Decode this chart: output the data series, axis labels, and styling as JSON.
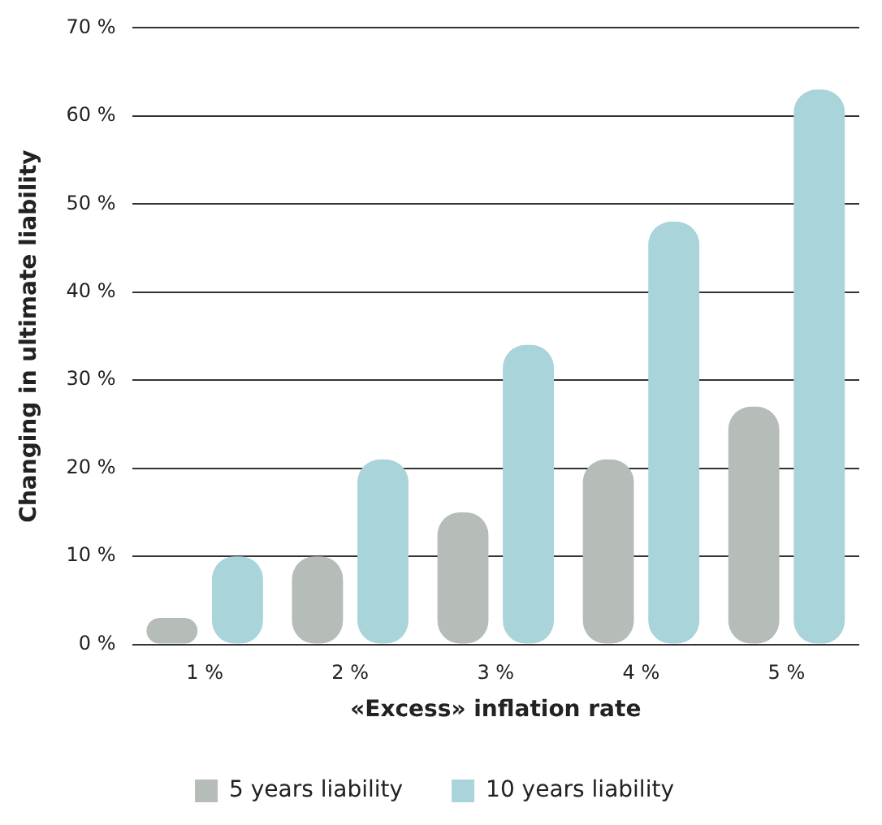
{
  "chart_data": {
    "type": "bar",
    "xlabel": "«Excess» inflation rate",
    "ylabel": "Changing in ultimate liability",
    "categories": [
      "1 %",
      "2 %",
      "3 %",
      "4 %",
      "5 %"
    ],
    "series": [
      {
        "name": "5 years liability",
        "color": "#b6bdb9",
        "values": [
          3,
          10,
          15,
          21,
          27
        ]
      },
      {
        "name": "10 years liability",
        "color": "#a9d4da",
        "values": [
          10,
          21,
          34,
          48,
          63
        ]
      }
    ],
    "ylim": [
      0,
      70
    ],
    "yticks": [
      {
        "value": 0,
        "label": "0 %"
      },
      {
        "value": 10,
        "label": "10 %"
      },
      {
        "value": 20,
        "label": "20 %"
      },
      {
        "value": 30,
        "label": "30 %"
      },
      {
        "value": 40,
        "label": "40 %"
      },
      {
        "value": 50,
        "label": "50 %"
      },
      {
        "value": 60,
        "label": "60 %"
      },
      {
        "value": 70,
        "label": "70 %"
      }
    ],
    "grid": "y",
    "legend": "bottom"
  }
}
